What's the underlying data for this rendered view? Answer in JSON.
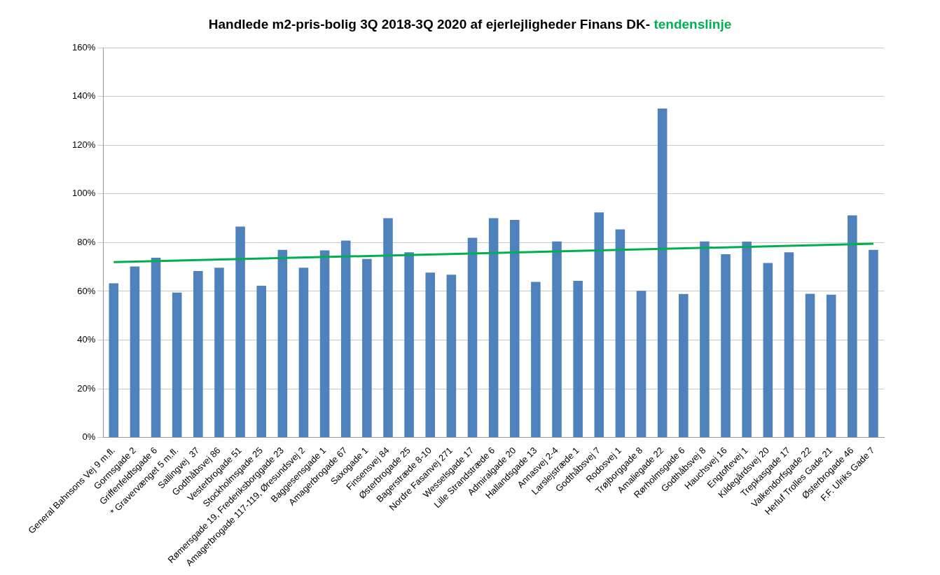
{
  "chart_data": {
    "type": "bar",
    "title": "Handlede m2-pris-bolig 3Q 2018-3Q 2020 af ejerlejligheder  Finans DK-",
    "categories": [
      "General Bahnsons Vej 9 m.fl.",
      "Gormsgade 2",
      "Griffenfeldtsgade 6",
      "* Gravervænget 5 m.fl.",
      "Sallingvej  37",
      "Godthåbsvej 86",
      "Vesterbrogade 51",
      "Stockholmsgade 25",
      "Rømersgade 19, Frederiksborggade 23",
      "Amagerbrogade 117-119, Øresundsvej 2",
      "Baggesensgade 1",
      "Amagerbrogade 67",
      "Saxogade 1",
      "Finsensvej 84",
      "Østerbrogade 25",
      "Bagerstræde 8-10",
      "Nordre Fasanvej 271",
      "Wesselsgade 17",
      "Lille Strandstræde 6",
      "Admiralgade 20",
      "Hallandsgade 13",
      "Annasvej 2-4",
      "Larslejstræde 1",
      "Godthåbsvej 7",
      "Rodosvej 1",
      "Trøjborggade 8",
      "Amaliegade 22",
      "Rørholmsgade 6",
      "Godthåbsvej 8",
      "Hauchsvej 16",
      "Engtoftevej 1",
      "Kildegårdsvej 20",
      "Trepkasgade 17",
      "Valkendorfsgade 22",
      "Herluf Trolles Gade 21",
      "Østerbrogade 46",
      "F.F. Ulriks Gade 7"
    ],
    "series": [
      {
        "color": "#4f81bd",
        "values": [
          63.3,
          70.2,
          73.8,
          59.5,
          68.3,
          69.7,
          86.6,
          62.3,
          77.0,
          69.7,
          76.8,
          80.8,
          73.3,
          90.0,
          76.0,
          67.7,
          66.8,
          82.0,
          90.0,
          89.3,
          63.9,
          80.5,
          64.3,
          92.4,
          85.4,
          60.2,
          135.0,
          58.9,
          80.5,
          75.2,
          80.4,
          71.6,
          76.0,
          59.0,
          58.6,
          91.2,
          77.0
        ]
      },
      {
        "type": "line",
        "name": "tendenslinje",
        "color": "#00b050",
        "values": [
          72,
          null,
          null,
          null,
          null,
          null,
          null,
          null,
          null,
          null,
          null,
          null,
          null,
          null,
          null,
          null,
          null,
          null,
          null,
          null,
          null,
          null,
          null,
          null,
          null,
          null,
          null,
          null,
          null,
          null,
          null,
          null,
          null,
          null,
          null,
          null,
          79.5
        ]
      }
    ],
    "ylim": [
      0,
      160
    ],
    "yticks": [
      {
        "value": 0,
        "label": "0%"
      },
      {
        "value": 20,
        "label": "20%"
      },
      {
        "value": 40,
        "label": "40%"
      },
      {
        "value": 60,
        "label": "60%"
      },
      {
        "value": 80,
        "label": "80%"
      },
      {
        "value": 100,
        "label": "100%"
      },
      {
        "value": 120,
        "label": "120%"
      },
      {
        "value": 140,
        "label": "140%"
      },
      {
        "value": 160,
        "label": "160%"
      }
    ],
    "grid": "y",
    "legend": false,
    "marker": "none"
  }
}
